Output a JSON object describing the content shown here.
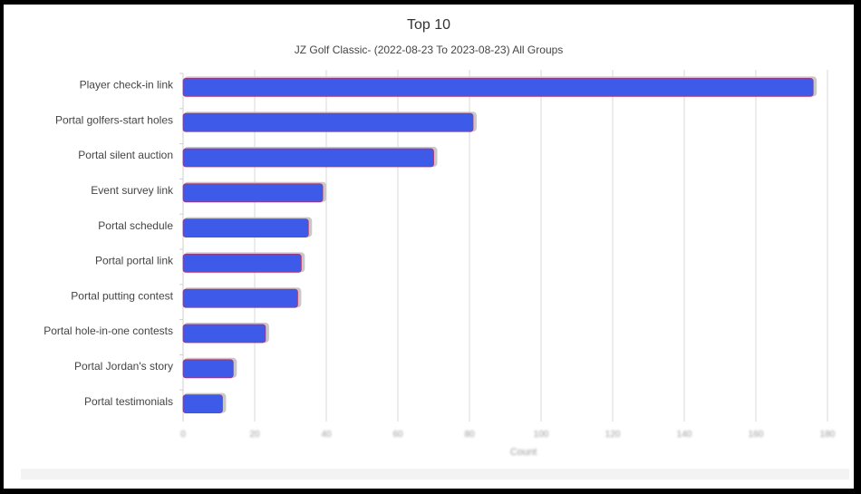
{
  "chart_data": {
    "type": "bar",
    "orientation": "horizontal",
    "title": "Top 10",
    "subtitle": "JZ Golf Classic- (2022-08-23 To 2023-08-23) All Groups",
    "xlabel": "Count",
    "ylabel": "",
    "xlim": [
      0,
      180
    ],
    "x_ticks": [
      0,
      20,
      40,
      60,
      80,
      100,
      120,
      140,
      160,
      180
    ],
    "grid": true,
    "legend": "none",
    "bar_color": "#3d5ae8",
    "bar_border_color": "#b0306a",
    "shadow_color": "#c8c8c8",
    "categories": [
      "Player check-in link",
      "Portal golfers-start holes",
      "Portal silent auction",
      "Event survey link",
      "Portal schedule",
      "Portal portal link",
      "Portal putting contest",
      "Portal hole-in-one contests",
      "Portal Jordan's story",
      "Portal testimonials"
    ],
    "values": [
      176,
      81,
      70,
      39,
      35,
      33,
      32,
      23,
      14,
      11
    ]
  }
}
